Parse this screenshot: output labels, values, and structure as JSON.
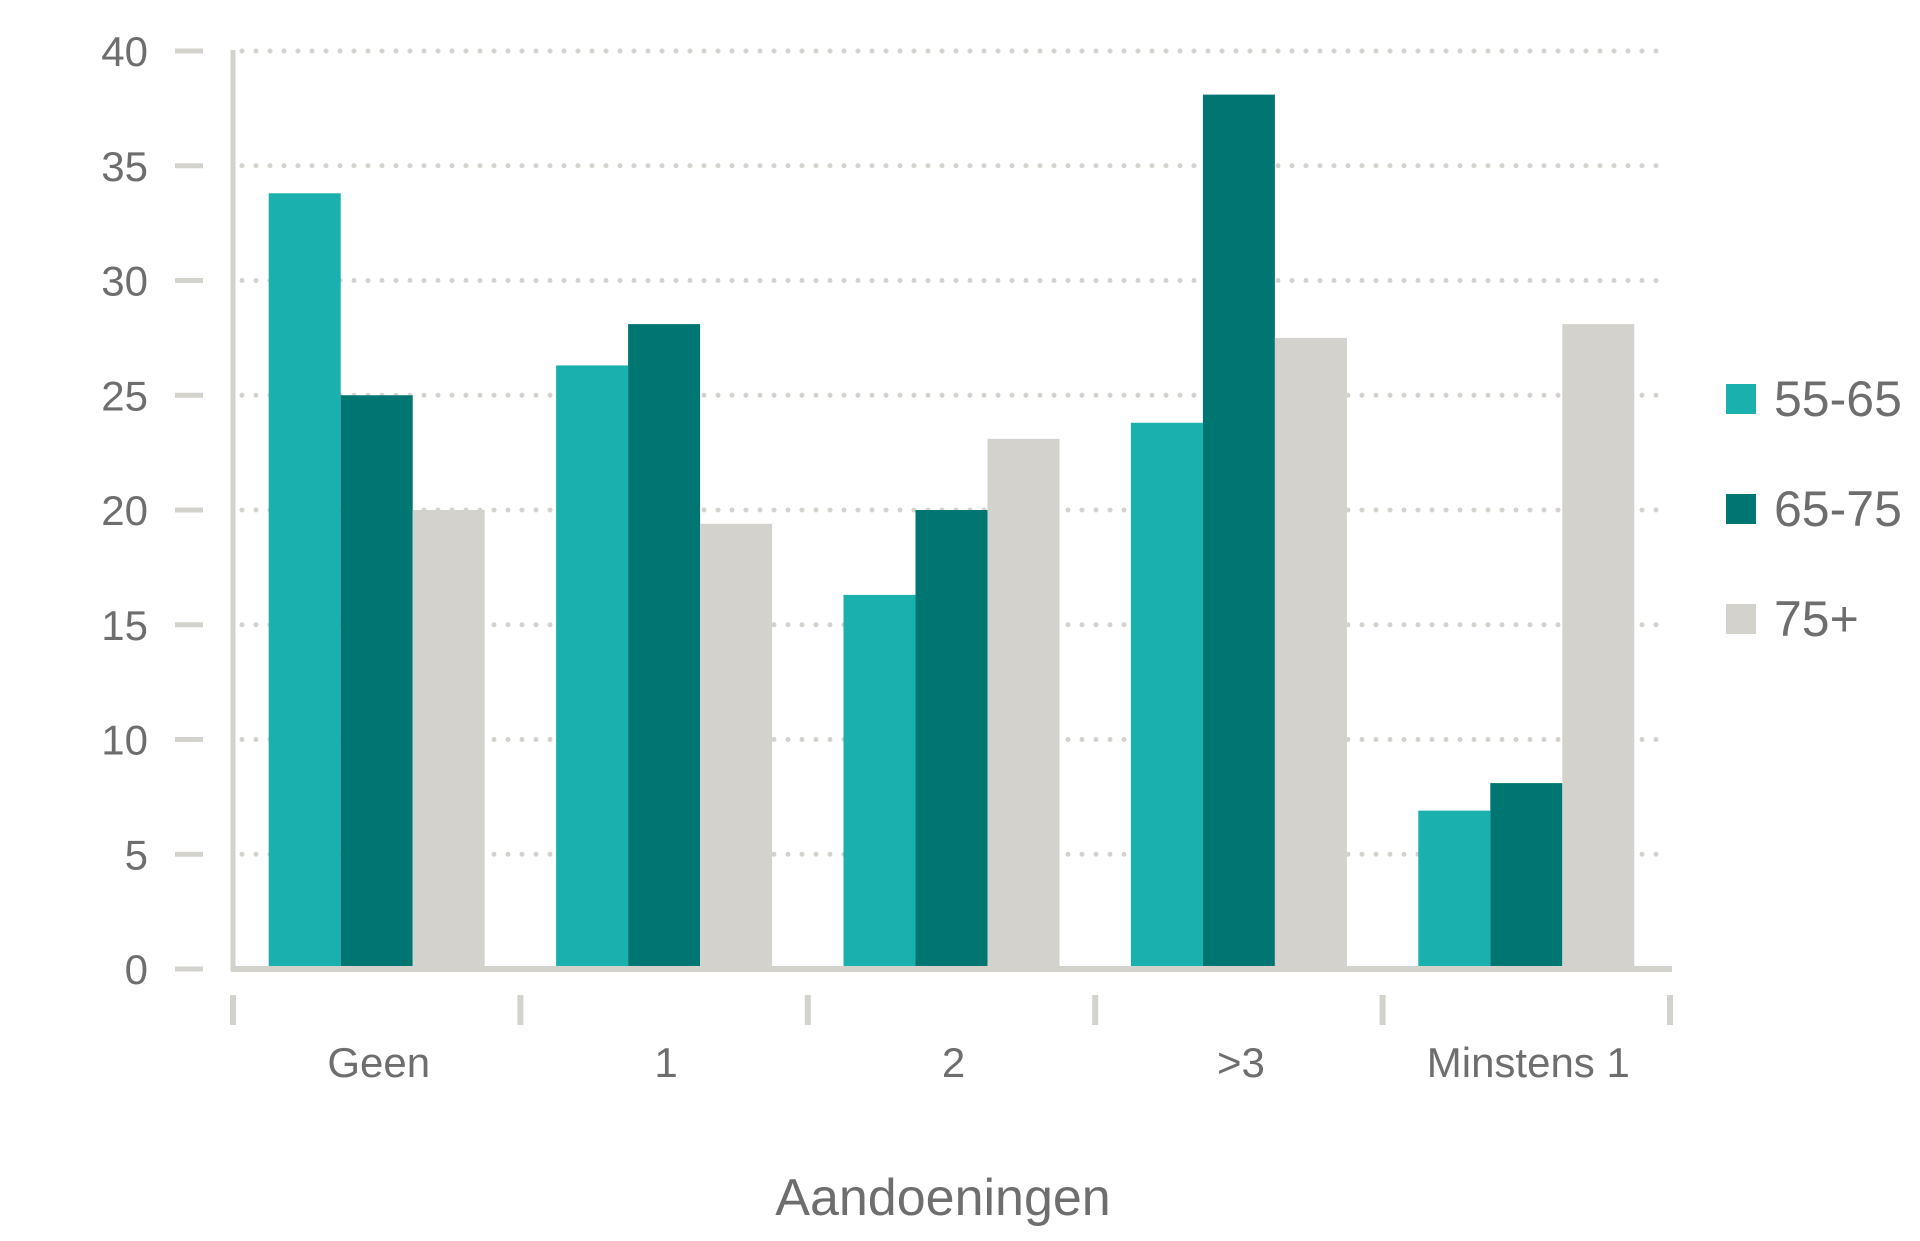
{
  "chart_data": {
    "type": "bar",
    "xlabel": "Aandoeningen",
    "ylabel": "",
    "ylim": [
      0,
      40
    ],
    "yticks": [
      0,
      5,
      10,
      15,
      20,
      25,
      30,
      35,
      40
    ],
    "grid": true,
    "legend_position": "right",
    "categories": [
      "Geen",
      "1",
      "2",
      ">3",
      "Minstens 1"
    ],
    "series": [
      {
        "name": "55-65",
        "color": "#1ab0ae",
        "values": [
          33.8,
          26.3,
          16.3,
          23.8,
          6.9
        ]
      },
      {
        "name": "65-75",
        "color": "#007672",
        "values": [
          25.0,
          28.1,
          20.0,
          38.1,
          8.1
        ]
      },
      {
        "name": "75+",
        "color": "#d3d2cc",
        "values": [
          20.0,
          19.4,
          23.1,
          27.5,
          28.1
        ]
      }
    ],
    "colors": {
      "axis": "#d3d2cc",
      "grid": "#d3d2cc",
      "text": "#6e6e6e"
    }
  }
}
